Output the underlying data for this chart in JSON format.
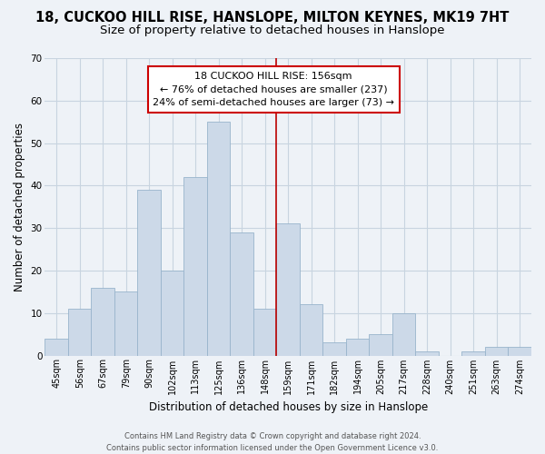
{
  "title": "18, CUCKOO HILL RISE, HANSLOPE, MILTON KEYNES, MK19 7HT",
  "subtitle": "Size of property relative to detached houses in Hanslope",
  "xlabel": "Distribution of detached houses by size in Hanslope",
  "ylabel": "Number of detached properties",
  "bar_labels": [
    "45sqm",
    "56sqm",
    "67sqm",
    "79sqm",
    "90sqm",
    "102sqm",
    "113sqm",
    "125sqm",
    "136sqm",
    "148sqm",
    "159sqm",
    "171sqm",
    "182sqm",
    "194sqm",
    "205sqm",
    "217sqm",
    "228sqm",
    "240sqm",
    "251sqm",
    "263sqm",
    "274sqm"
  ],
  "bar_values": [
    4,
    11,
    16,
    15,
    39,
    20,
    42,
    55,
    29,
    11,
    31,
    12,
    3,
    4,
    5,
    10,
    1,
    0,
    1,
    2,
    2
  ],
  "bar_color": "#ccd9e8",
  "bar_edge_color": "#98b4cc",
  "background_color": "#eef2f7",
  "grid_color": "#c8d4e0",
  "vline_color": "#bb0000",
  "annotation_title": "18 CUCKOO HILL RISE: 156sqm",
  "annotation_line1": "← 76% of detached houses are smaller (237)",
  "annotation_line2": "24% of semi-detached houses are larger (73) →",
  "annotation_box_facecolor": "#ffffff",
  "annotation_box_edgecolor": "#cc0000",
  "ylim": [
    0,
    70
  ],
  "yticks": [
    0,
    10,
    20,
    30,
    40,
    50,
    60,
    70
  ],
  "footer_line1": "Contains HM Land Registry data © Crown copyright and database right 2024.",
  "footer_line2": "Contains public sector information licensed under the Open Government Licence v3.0.",
  "title_fontsize": 10.5,
  "subtitle_fontsize": 9.5,
  "tick_fontsize": 7,
  "ylabel_fontsize": 8.5,
  "xlabel_fontsize": 8.5,
  "footer_fontsize": 6,
  "annot_fontsize": 8,
  "vline_pos": 9.5
}
